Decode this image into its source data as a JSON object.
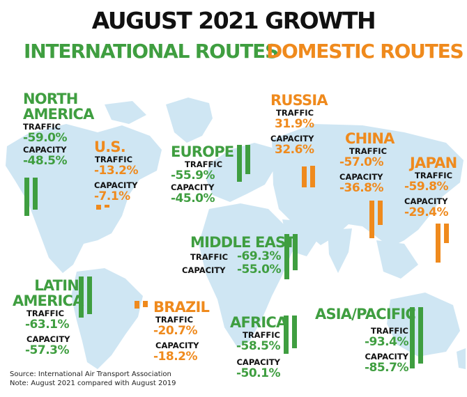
{
  "title": "AUGUST 2021 GROWTH",
  "legend": {
    "international": "INTERNATIONAL ROUTES",
    "domestic": "DOMESTIC ROUTES"
  },
  "labels": {
    "traffic": "TRAFFIC",
    "capacity": "CAPACITY"
  },
  "source": {
    "line1": "Source: International Air Transport Association",
    "line2": "Note: August 2021 compared with August 2019"
  },
  "colors": {
    "international": "#3f9e40",
    "domestic": "#ef8a1d",
    "map": "#cfe6f3",
    "title": "#111111"
  },
  "chart_data": {
    "type": "bar",
    "title": "AUGUST 2021 GROWTH",
    "series": [
      {
        "name": "TRAFFIC",
        "values": [
          -59.0,
          -13.2,
          -55.9,
          31.9,
          -57.0,
          -59.8,
          -69.3,
          -63.1,
          -20.7,
          -58.5,
          -93.4
        ]
      },
      {
        "name": "CAPACITY",
        "values": [
          -48.5,
          -7.1,
          -45.0,
          32.6,
          -36.8,
          -29.4,
          -55.0,
          -57.3,
          -18.2,
          -50.1,
          -85.7
        ]
      }
    ],
    "regions": [
      {
        "name": "NORTH AMERICA",
        "route_type": "INTERNATIONAL ROUTES",
        "traffic": "-59.0%",
        "capacity": "-48.5%"
      },
      {
        "name": "U.S.",
        "route_type": "DOMESTIC ROUTES",
        "traffic": "-13.2%",
        "capacity": "-7.1%"
      },
      {
        "name": "EUROPE",
        "route_type": "INTERNATIONAL ROUTES",
        "traffic": "-55.9%",
        "capacity": "-45.0%"
      },
      {
        "name": "RUSSIA",
        "route_type": "DOMESTIC ROUTES",
        "traffic": "31.9%",
        "capacity": "32.6%"
      },
      {
        "name": "CHINA",
        "route_type": "DOMESTIC ROUTES",
        "traffic": "-57.0%",
        "capacity": "-36.8%"
      },
      {
        "name": "JAPAN",
        "route_type": "DOMESTIC ROUTES",
        "traffic": "-59.8%",
        "capacity": "-29.4%"
      },
      {
        "name": "MIDDLE EAST",
        "route_type": "INTERNATIONAL ROUTES",
        "traffic": "-69.3%",
        "capacity": "-55.0%"
      },
      {
        "name": "LATIN AMERICA",
        "route_type": "INTERNATIONAL ROUTES",
        "traffic": "-63.1%",
        "capacity": "-57.3%"
      },
      {
        "name": "BRAZIL",
        "route_type": "DOMESTIC ROUTES",
        "traffic": "-20.7%",
        "capacity": "-18.2%"
      },
      {
        "name": "AFRICA",
        "route_type": "INTERNATIONAL ROUTES",
        "traffic": "-58.5%",
        "capacity": "-50.1%"
      },
      {
        "name": "ASIA/PACIFIC",
        "route_type": "INTERNATIONAL ROUTES",
        "traffic": "-93.4%",
        "capacity": "-85.7%"
      }
    ]
  }
}
